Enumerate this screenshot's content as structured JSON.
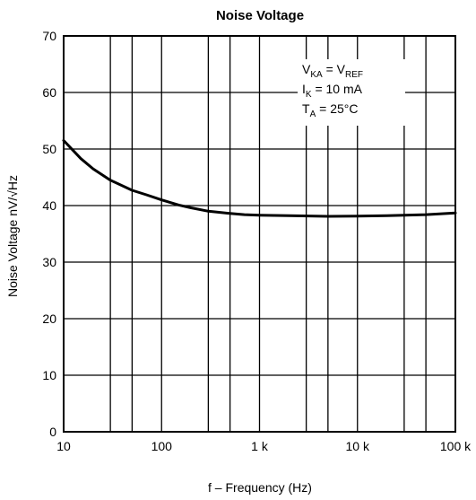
{
  "chart_data": {
    "type": "line",
    "title": "Noise Voltage",
    "xlabel": "f – Frequency (Hz)",
    "ylabel": "Noise Voltage nV/√Hz",
    "x_scale": "log",
    "xlim": [
      10,
      100000
    ],
    "ylim": [
      0,
      70
    ],
    "grid": true,
    "x_ticks": [
      {
        "value": 10,
        "label": "10"
      },
      {
        "value": 100,
        "label": "100"
      },
      {
        "value": 1000,
        "label": "1 k"
      },
      {
        "value": 10000,
        "label": "10 k"
      },
      {
        "value": 100000,
        "label": "100 k"
      }
    ],
    "y_ticks": [
      {
        "value": 0,
        "label": "0"
      },
      {
        "value": 10,
        "label": "10"
      },
      {
        "value": 20,
        "label": "20"
      },
      {
        "value": 30,
        "label": "30"
      },
      {
        "value": 40,
        "label": "40"
      },
      {
        "value": 50,
        "label": "50"
      },
      {
        "value": 60,
        "label": "60"
      },
      {
        "value": 70,
        "label": "70"
      }
    ],
    "series": [
      {
        "x": [
          10,
          15,
          20,
          30,
          50,
          70,
          100,
          150,
          200,
          300,
          500,
          700,
          1000,
          2000,
          5000,
          10000,
          20000,
          50000,
          100000
        ],
        "y": [
          51.5,
          48.3,
          46.5,
          44.5,
          42.7,
          41.9,
          41.0,
          40.1,
          39.6,
          39.0,
          38.6,
          38.4,
          38.3,
          38.2,
          38.1,
          38.15,
          38.2,
          38.4,
          38.7
        ]
      }
    ],
    "annotations": [
      {
        "main": "V",
        "sub": "KA",
        "mid": " = V",
        "sub2": "REF"
      },
      {
        "main": "I",
        "sub": "K",
        "mid": " = 10 mA",
        "sub2": ""
      },
      {
        "main": "T",
        "sub": "A",
        "mid": " = 25°C",
        "sub2": ""
      }
    ]
  },
  "colors": {
    "line": "#000000",
    "grid": "#000000",
    "background": "#ffffff"
  }
}
